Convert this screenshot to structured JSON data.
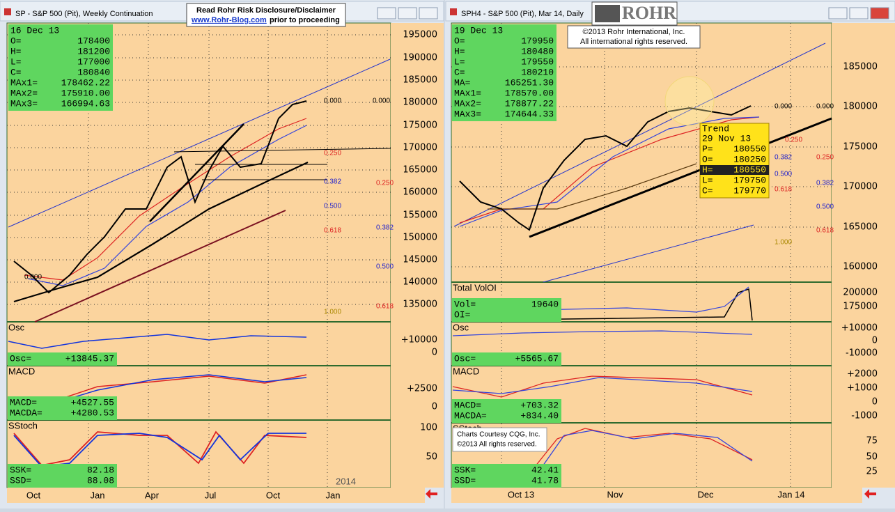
{
  "left": {
    "title": "SP - S&P 500 (Pit), Weekly Continuation",
    "info": {
      "date": "16 Dec 13",
      "rows": [
        [
          "O=",
          "178400"
        ],
        [
          "H=",
          "181200"
        ],
        [
          "L=",
          "177000"
        ],
        [
          "C=",
          "180840"
        ],
        [
          "MAx1=",
          "178462.22"
        ],
        [
          "MAx2=",
          "175910.00"
        ],
        [
          "MAx3=",
          "166994.63"
        ]
      ]
    },
    "price_axis": [
      "195000",
      "190000",
      "185000",
      "180000",
      "175000",
      "170000",
      "165000",
      "160000",
      "155000",
      "150000",
      "145000",
      "140000",
      "135000"
    ],
    "fib": [
      "0.000",
      "0.000",
      "0.250",
      "0.382",
      "0.250",
      "0.500",
      "0.382",
      "0.618",
      "0.500",
      "0.618",
      "1.000",
      "0.000"
    ],
    "panels": [
      {
        "label": "Osc",
        "axis": [
          "+10000",
          "0"
        ],
        "rows": [
          [
            "Osc=",
            "+13845.37"
          ]
        ]
      },
      {
        "label": "MACD",
        "axis": [
          "+2500",
          "0"
        ],
        "rows": [
          [
            "MACD=",
            "+4527.55"
          ],
          [
            "MACDA=",
            "+4280.53"
          ]
        ]
      },
      {
        "label": "SStoch",
        "axis": [
          "100",
          "50"
        ],
        "rows": [
          [
            "SSK=",
            "82.18"
          ],
          [
            "SSD=",
            "88.08"
          ]
        ]
      }
    ],
    "x_axis": [
      "Oct",
      "Jan",
      "Apr",
      "Jul",
      "Oct",
      "Jan"
    ],
    "year": "2014"
  },
  "right": {
    "title": "SPH4 - S&P 500 (Pit), Mar 14, Daily",
    "info": {
      "date": "19 Dec 13",
      "rows": [
        [
          "O=",
          "179950"
        ],
        [
          "H=",
          "180480"
        ],
        [
          "L=",
          "179550"
        ],
        [
          "C=",
          "180210"
        ],
        [
          "MA=",
          "165251.30"
        ],
        [
          "MAx1=",
          "178570.00"
        ],
        [
          "MAx2=",
          "178877.22"
        ],
        [
          "MAx3=",
          "174644.33"
        ]
      ]
    },
    "price_axis": [
      "185000",
      "180000",
      "175000",
      "170000",
      "165000",
      "160000"
    ],
    "fib": [
      "0.000",
      "0.000",
      "0.250",
      "0.382",
      "0.250",
      "0.500",
      "0.382",
      "0.618",
      "0.500",
      "0.618",
      "1.000"
    ],
    "panels": [
      {
        "label": "Total VolOI",
        "axis": [
          "200000",
          "175000"
        ],
        "rows": [
          [
            "Vol=",
            "19640"
          ],
          [
            "OI=",
            ""
          ]
        ]
      },
      {
        "label": "Osc",
        "axis": [
          "+10000",
          "0",
          "-10000"
        ],
        "rows": [
          [
            "Osc=",
            "+5565.67"
          ]
        ]
      },
      {
        "label": "MACD",
        "axis": [
          "+2000",
          "+1000",
          "0",
          "-1000"
        ],
        "rows": [
          [
            "MACD=",
            "+703.32"
          ],
          [
            "MACDA=",
            "+834.40"
          ]
        ]
      },
      {
        "label": "SStoch",
        "axis": [
          "75",
          "50",
          "25"
        ],
        "rows": [
          [
            "SSK=",
            "42.41"
          ],
          [
            "SSD=",
            "41.78"
          ]
        ]
      }
    ],
    "x_axis": [
      "Oct 13",
      "Nov",
      "Dec",
      "Jan 14"
    ],
    "trend": {
      "title": "Trend",
      "date": "29 Nov 13",
      "rows": [
        [
          "P=",
          "180550"
        ],
        [
          "O=",
          "180250"
        ],
        [
          "H=",
          "180550"
        ],
        [
          "L=",
          "179750"
        ],
        [
          "C=",
          "179770"
        ]
      ]
    }
  },
  "disclaimer": {
    "line1": "Read Rohr Risk Disclosure/Disclaimer",
    "link": "www.Rohr-Blog.com",
    "line2": "prior to proceeding"
  },
  "logo": "ROHR",
  "copyright": [
    "©2013  Rohr International, Inc.",
    "All international rights reserved."
  ],
  "courtesy": [
    "Charts Courtesy CQG, Inc.",
    "©2013 All rights reserved."
  ]
}
